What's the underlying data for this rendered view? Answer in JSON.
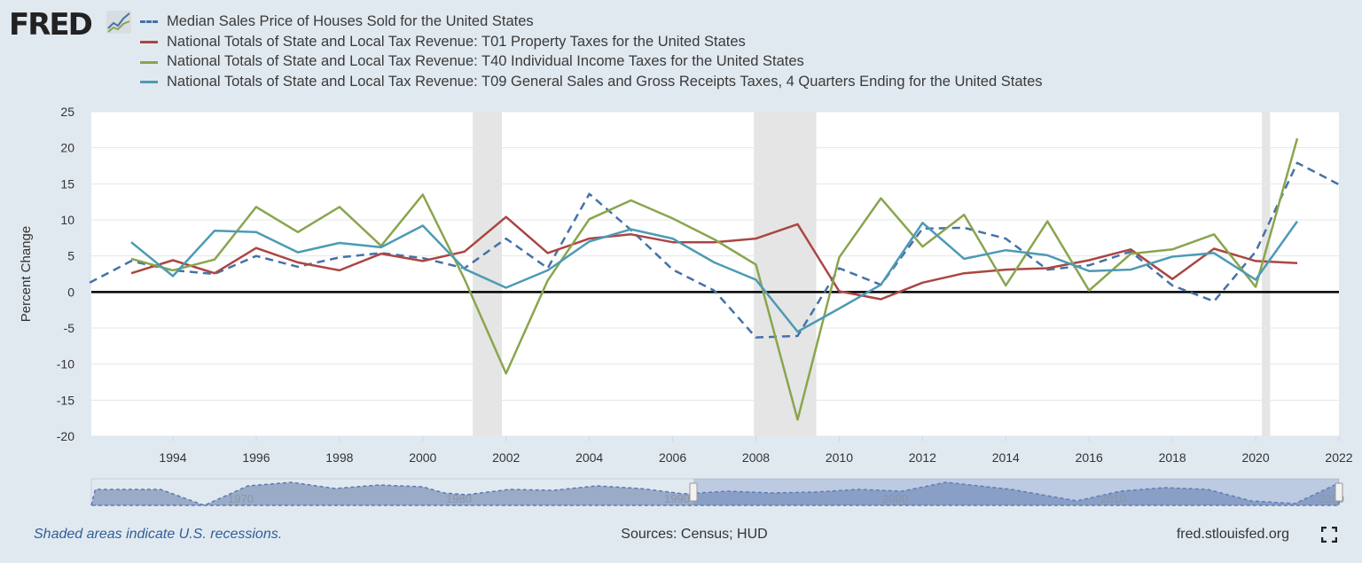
{
  "logo": {
    "text": "FRED"
  },
  "legend": [
    {
      "label": "Median Sales Price of Houses Sold for the United States",
      "color": "#4572a7",
      "dashed": true
    },
    {
      "label": "National Totals of State and Local Tax Revenue: T01 Property Taxes for the United States",
      "color": "#aa4643",
      "dashed": false
    },
    {
      "label": "National Totals of State and Local Tax Revenue: T40 Individual Income Taxes for the United States",
      "color": "#89a54e",
      "dashed": false
    },
    {
      "label": "National Totals of State and Local Tax Revenue: T09 General Sales and Gross Receipts Taxes, 4 Quarters Ending for the United States",
      "color": "#4d9ab5",
      "dashed": false
    }
  ],
  "chart_data": {
    "type": "line",
    "ylabel": "Percent Change",
    "ylim": [
      -20,
      25
    ],
    "xlim": [
      1992,
      2022
    ],
    "yticks": [
      25,
      20,
      15,
      10,
      5,
      0,
      -5,
      -10,
      -15,
      -20
    ],
    "xticks": [
      "1994",
      "1996",
      "1998",
      "2000",
      "2002",
      "2004",
      "2006",
      "2008",
      "2010",
      "2012",
      "2014",
      "2016",
      "2018",
      "2020",
      "2022"
    ],
    "grid": true,
    "recessions": [
      [
        2001.2,
        2001.9
      ],
      [
        2007.95,
        2009.45
      ],
      [
        2020.15,
        2020.35
      ]
    ],
    "series": [
      {
        "name": "Median Sales Price of Houses Sold for the United States",
        "start": 1992,
        "values": [
          1.3,
          4.3,
          3.0,
          2.5,
          5.0,
          3.5,
          4.8,
          5.4,
          4.7,
          3.3,
          7.4,
          3.3,
          13.6,
          8.6,
          3.1,
          0.2,
          -6.3,
          -6.1,
          3.3,
          1.0,
          8.8,
          8.9,
          7.4,
          3.1,
          3.7,
          5.6,
          0.9,
          -1.3,
          5.6,
          17.9,
          14.9
        ]
      },
      {
        "name": "National Totals of State and Local Tax Revenue: T01 Property Taxes for the United States",
        "start": 1993,
        "values": [
          2.6,
          4.4,
          2.6,
          6.1,
          4.1,
          3.0,
          5.3,
          4.3,
          5.6,
          10.4,
          5.4,
          7.4,
          8.0,
          6.9,
          6.9,
          7.4,
          9.4,
          0.1,
          -1.0,
          1.3,
          2.6,
          3.1,
          3.3,
          4.4,
          5.9,
          1.8,
          6.0,
          4.3,
          4.0
        ]
      },
      {
        "name": "National Totals of State and Local Tax Revenue: T40 Individual Income Taxes for the United States",
        "start": 1993,
        "values": [
          4.6,
          3.0,
          4.5,
          11.8,
          8.3,
          11.8,
          6.4,
          13.5,
          1.8,
          -11.3,
          1.6,
          10.1,
          12.7,
          10.2,
          7.3,
          3.8,
          -17.7,
          4.8,
          13.0,
          6.3,
          10.7,
          0.9,
          9.8,
          0.2,
          5.3,
          5.9,
          8.0,
          0.7,
          21.3
        ]
      },
      {
        "name": "National Totals of State and Local Tax Revenue: T09 General Sales and Gross Receipts Taxes, 4 Quarters Ending for the United States",
        "start": 1993,
        "values": [
          6.9,
          2.2,
          8.5,
          8.3,
          5.5,
          6.8,
          6.2,
          9.2,
          3.2,
          0.6,
          3.0,
          7.0,
          8.7,
          7.4,
          4.1,
          1.7,
          -5.5,
          -2.3,
          1.0,
          9.6,
          4.6,
          5.8,
          5.1,
          2.9,
          3.1,
          4.9,
          5.4,
          1.7,
          9.8
        ]
      }
    ]
  },
  "navigator": {
    "labels": [
      "1970",
      "1980",
      "1990",
      "2000",
      "2010",
      "2020"
    ]
  },
  "footer": {
    "recession_note": "Shaded areas indicate U.S. recessions.",
    "sources": "Sources: Census; HUD",
    "site": "fred.stlouisfed.org"
  },
  "icons": {
    "fullscreen": "fullscreen-icon"
  }
}
